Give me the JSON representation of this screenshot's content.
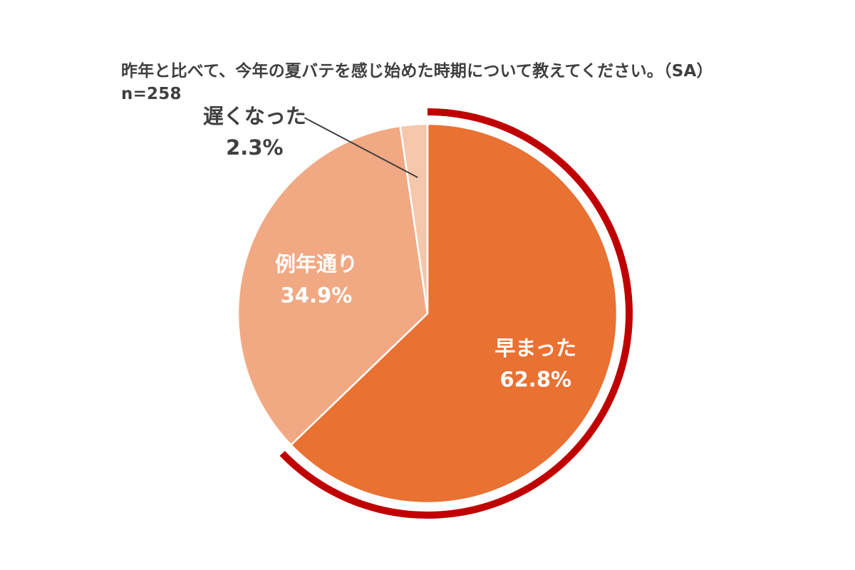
{
  "title": "昨年と比べて、今年の夏バテを感じ始めた時期について教えてください。（SA）",
  "subtitle": "n=258",
  "chart_data": {
    "type": "pie",
    "title": "昨年と比べて、今年の夏バテを感じ始めた時期について教えてください。（SA）",
    "subtitle": "n=258",
    "start": "12 o'clock",
    "direction": "clockwise",
    "highlighted_slice": "早まった",
    "slices": [
      {
        "label": "早まった",
        "value": 62.8,
        "value_label": "62.8%",
        "color": "#E97132"
      },
      {
        "label": "例年通り",
        "value": 34.9,
        "value_label": "34.9%",
        "color": "#F1A983"
      },
      {
        "label": "遅くなった",
        "value": 2.3,
        "value_label": "2.3%",
        "color": "#F7C7AC"
      }
    ],
    "colors": {
      "highlight_ring": "#C00000",
      "label_on_slice": "#FFFFFF",
      "label_outside": "#3F3F3F",
      "leader_line": "#3F3F3F"
    }
  }
}
